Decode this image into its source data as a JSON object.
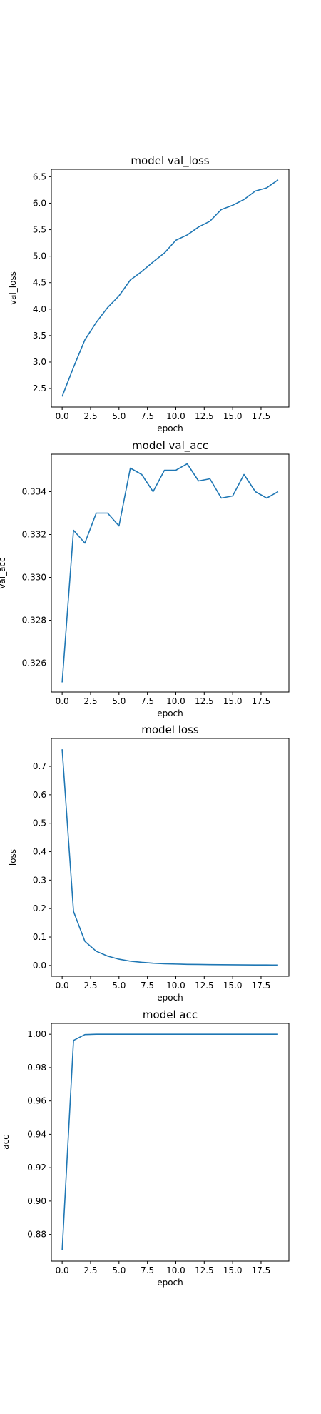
{
  "figure": {
    "line_color": "#1f77b4"
  },
  "chart_data": [
    {
      "type": "line",
      "title": "model val_loss",
      "xlabel": "epoch",
      "ylabel": "val_loss",
      "x": [
        0,
        1,
        2,
        3,
        4,
        5,
        6,
        7,
        8,
        9,
        10,
        11,
        12,
        13,
        14,
        15,
        16,
        17,
        18,
        19
      ],
      "series": [
        {
          "values": [
            2.35,
            2.9,
            3.42,
            3.75,
            4.03,
            4.25,
            4.55,
            4.71,
            4.89,
            5.06,
            5.3,
            5.4,
            5.55,
            5.66,
            5.88,
            5.96,
            6.07,
            6.23,
            6.29,
            6.44
          ]
        }
      ],
      "xlim": [
        -0.95,
        19.95
      ],
      "ylim": [
        2.15,
        6.64
      ],
      "xticks": [
        0,
        2.5,
        5,
        7.5,
        10,
        12.5,
        15,
        17.5
      ],
      "xtick_labels": [
        "0.0",
        "2.5",
        "5.0",
        "7.5",
        "10.0",
        "12.5",
        "15.0",
        "17.5"
      ],
      "yticks": [
        2.5,
        3.0,
        3.5,
        4.0,
        4.5,
        5.0,
        5.5,
        6.0,
        6.5
      ],
      "ytick_labels": [
        "2.5",
        "3.0",
        "3.5",
        "4.0",
        "4.5",
        "5.0",
        "5.5",
        "6.0",
        "6.5"
      ],
      "grid": false,
      "legend": "none"
    },
    {
      "type": "line",
      "title": "model val_acc",
      "xlabel": "epoch",
      "ylabel": "val_acc",
      "x": [
        0,
        1,
        2,
        3,
        4,
        5,
        6,
        7,
        8,
        9,
        10,
        11,
        12,
        13,
        14,
        15,
        16,
        17,
        18,
        19
      ],
      "series": [
        {
          "values": [
            0.3251,
            0.3322,
            0.3316,
            0.333,
            0.333,
            0.3324,
            0.3351,
            0.3348,
            0.334,
            0.335,
            0.335,
            0.3353,
            0.3345,
            0.3346,
            0.3337,
            0.3338,
            0.3348,
            0.334,
            0.3337,
            0.334
          ]
        }
      ],
      "xlim": [
        -0.95,
        19.95
      ],
      "ylim": [
        0.32465,
        0.33575
      ],
      "xticks": [
        0,
        2.5,
        5,
        7.5,
        10,
        12.5,
        15,
        17.5
      ],
      "xtick_labels": [
        "0.0",
        "2.5",
        "5.0",
        "7.5",
        "10.0",
        "12.5",
        "15.0",
        "17.5"
      ],
      "yticks": [
        0.326,
        0.328,
        0.33,
        0.332,
        0.334
      ],
      "ytick_labels": [
        "0.326",
        "0.328",
        "0.330",
        "0.332",
        "0.334"
      ],
      "grid": false,
      "legend": "none"
    },
    {
      "type": "line",
      "title": "model loss",
      "xlabel": "epoch",
      "ylabel": "loss",
      "x": [
        0,
        1,
        2,
        3,
        4,
        5,
        6,
        7,
        8,
        9,
        10,
        11,
        12,
        13,
        14,
        15,
        16,
        17,
        18,
        19
      ],
      "series": [
        {
          "values": [
            0.76,
            0.19,
            0.085,
            0.05,
            0.033,
            0.022,
            0.015,
            0.011,
            0.008,
            0.006,
            0.005,
            0.004,
            0.0035,
            0.003,
            0.0026,
            0.0023,
            0.002,
            0.0018,
            0.0016,
            0.0015
          ]
        }
      ],
      "xlim": [
        -0.95,
        19.95
      ],
      "ylim": [
        -0.038,
        0.798
      ],
      "xticks": [
        0,
        2.5,
        5,
        7.5,
        10,
        12.5,
        15,
        17.5
      ],
      "xtick_labels": [
        "0.0",
        "2.5",
        "5.0",
        "7.5",
        "10.0",
        "12.5",
        "15.0",
        "17.5"
      ],
      "yticks": [
        0.0,
        0.1,
        0.2,
        0.3,
        0.4,
        0.5,
        0.6,
        0.7
      ],
      "ytick_labels": [
        "0.0",
        "0.1",
        "0.2",
        "0.3",
        "0.4",
        "0.5",
        "0.6",
        "0.7"
      ],
      "grid": false,
      "legend": "none"
    },
    {
      "type": "line",
      "title": "model acc",
      "xlabel": "epoch",
      "ylabel": "acc",
      "x": [
        0,
        1,
        2,
        3,
        4,
        5,
        6,
        7,
        8,
        9,
        10,
        11,
        12,
        13,
        14,
        15,
        16,
        17,
        18,
        19
      ],
      "series": [
        {
          "values": [
            0.8705,
            0.9963,
            0.9998,
            1.0,
            1.0,
            1.0,
            1.0,
            1.0,
            1.0,
            1.0,
            1.0,
            1.0,
            1.0,
            1.0,
            1.0,
            1.0,
            1.0,
            1.0,
            1.0,
            1.0
          ]
        }
      ],
      "xlim": [
        -0.95,
        19.95
      ],
      "ylim": [
        0.864,
        1.0065
      ],
      "xticks": [
        0,
        2.5,
        5,
        7.5,
        10,
        12.5,
        15,
        17.5
      ],
      "xtick_labels": [
        "0.0",
        "2.5",
        "5.0",
        "7.5",
        "10.0",
        "12.5",
        "15.0",
        "17.5"
      ],
      "yticks": [
        0.88,
        0.9,
        0.92,
        0.94,
        0.96,
        0.98,
        1.0
      ],
      "ytick_labels": [
        "0.88",
        "0.90",
        "0.92",
        "0.94",
        "0.96",
        "0.98",
        "1.00"
      ],
      "grid": false,
      "legend": "none"
    }
  ]
}
